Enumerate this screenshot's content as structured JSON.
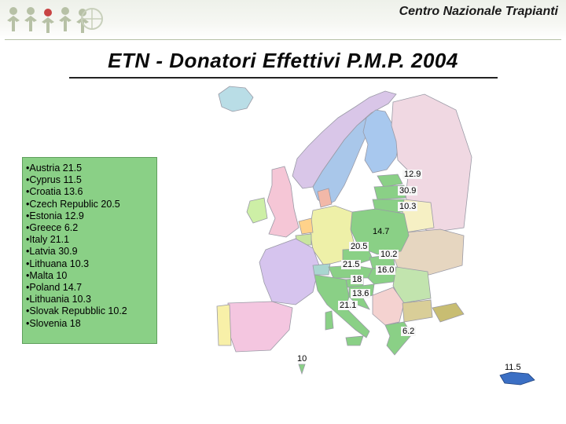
{
  "header": {
    "organization": "Centro Nazionale Trapianti"
  },
  "title": "ETN - Donatori Effettivi P.M.P. 2004",
  "legend": [
    "•Austria 21.5",
    "•Cyprus 11.5",
    "•Croatia 13.6",
    "•Czech Republic 20.5",
    "•Estonia 12.9",
    "•Greece 6.2",
    "•Italy 21.1",
    "•Latvia 30.9",
    "•Lithuana 10.3",
    "•Malta 10",
    "•Poland 14.7",
    "•Lithuania 10.3",
    "•Slovak Repubblic 10.2",
    "•Slovenia 18"
  ],
  "map_labels": {
    "estonia": "12.9",
    "latvia": "30.9",
    "lithuania": "10.3",
    "poland": "14.7",
    "czech": "20.5",
    "slovakia": "10.2",
    "austria": "21.5",
    "hungary": "16.0",
    "slovenia": "18",
    "croatia": "13.6",
    "italy": "21.1",
    "greece": "6.2",
    "malta": "10",
    "cyprus": "11.5"
  },
  "colors": {
    "legend_bg": "#8ad086",
    "eu_highlight": "#8ad086",
    "cyprus": "#3b6fc4",
    "header_rule": "#b5c0a5"
  }
}
